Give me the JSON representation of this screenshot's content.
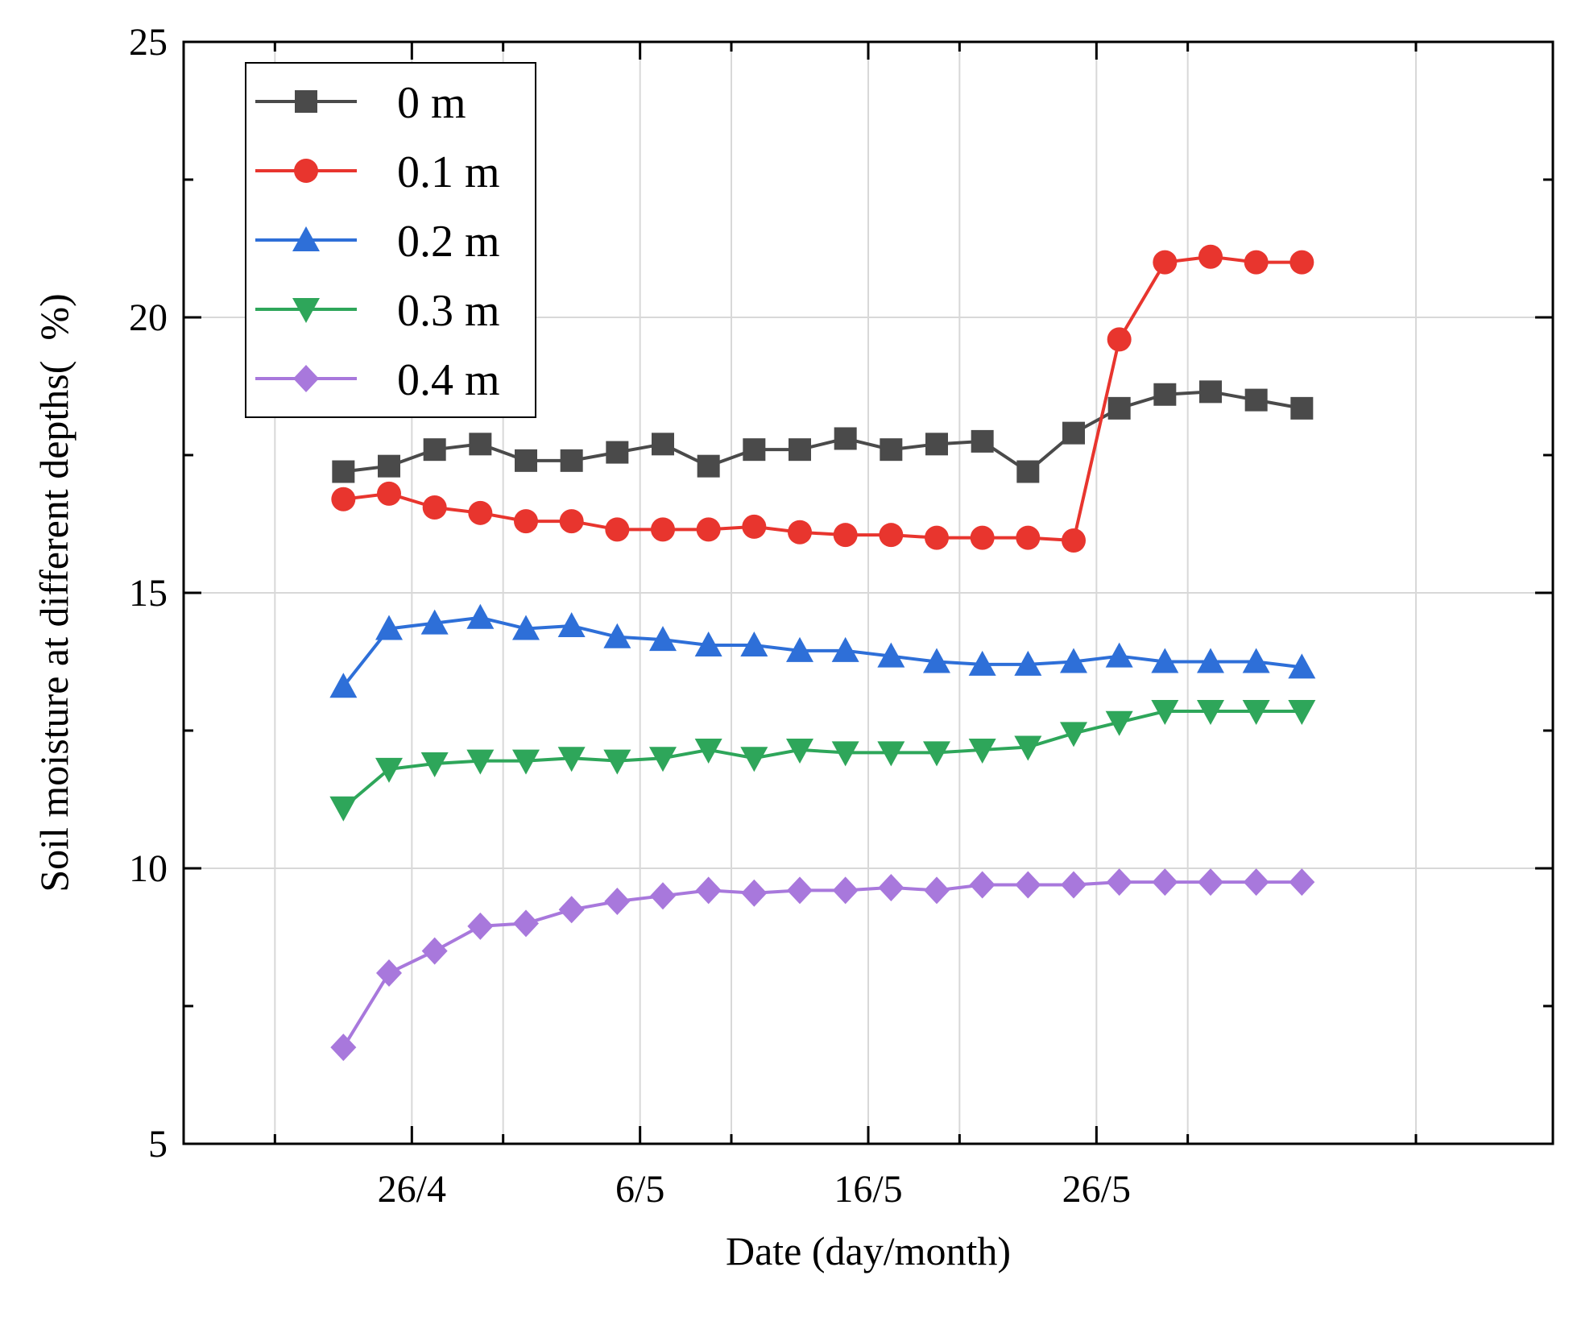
{
  "chart_data": {
    "type": "line",
    "title": "",
    "xlabel": "Date (day/month)",
    "ylabel": "Soil moisture at different depths(  %)",
    "ylim": [
      5,
      25
    ],
    "xlim": [
      -3.5,
      26.5
    ],
    "yticks": [
      5,
      10,
      15,
      20,
      25
    ],
    "xticks": [
      {
        "pos": 1.5,
        "label": "26/4"
      },
      {
        "pos": 6.5,
        "label": "6/5"
      },
      {
        "pos": 11.5,
        "label": "16/5"
      },
      {
        "pos": 16.5,
        "label": "26/5"
      }
    ],
    "xgrid": [
      -1.5,
      3.5,
      8.5,
      13.5,
      18.5,
      23.5
    ],
    "grid": true,
    "legend_position": "top-left",
    "x": [
      0,
      1,
      2,
      3,
      4,
      5,
      6,
      7,
      8,
      9,
      10,
      11,
      12,
      13,
      14,
      15,
      16,
      17,
      18,
      19,
      20,
      21
    ],
    "series": [
      {
        "name": "0 m",
        "color": "#4a4a4a",
        "marker": "square",
        "values": [
          17.2,
          17.3,
          17.6,
          17.7,
          17.4,
          17.4,
          17.55,
          17.7,
          17.3,
          17.6,
          17.6,
          17.8,
          17.6,
          17.7,
          17.75,
          17.2,
          17.9,
          18.35,
          18.6,
          18.65,
          18.5,
          18.35
        ]
      },
      {
        "name": "0.1 m",
        "color": "#e8352e",
        "marker": "circle",
        "values": [
          16.7,
          16.8,
          16.55,
          16.45,
          16.3,
          16.3,
          16.15,
          16.15,
          16.15,
          16.2,
          16.1,
          16.05,
          16.05,
          16.0,
          16.0,
          16.0,
          15.95,
          19.6,
          21.0,
          21.1,
          21.0,
          21.0
        ]
      },
      {
        "name": "0.2 m",
        "color": "#2e6fd8",
        "marker": "triangle-up",
        "values": [
          13.3,
          14.35,
          14.45,
          14.55,
          14.35,
          14.4,
          14.2,
          14.15,
          14.05,
          14.05,
          13.95,
          13.95,
          13.85,
          13.75,
          13.7,
          13.7,
          13.75,
          13.85,
          13.75,
          13.75,
          13.75,
          13.65
        ]
      },
      {
        "name": "0.3 m",
        "color": "#2ea65a",
        "marker": "triangle-down",
        "values": [
          11.1,
          11.8,
          11.9,
          11.95,
          11.95,
          12.0,
          11.95,
          12.0,
          12.15,
          12.0,
          12.15,
          12.1,
          12.1,
          12.1,
          12.15,
          12.2,
          12.45,
          12.65,
          12.85,
          12.85,
          12.85,
          12.85
        ]
      },
      {
        "name": "0.4 m",
        "color": "#a878dc",
        "marker": "diamond",
        "values": [
          6.75,
          8.1,
          8.5,
          8.95,
          9.0,
          9.25,
          9.4,
          9.5,
          9.6,
          9.55,
          9.6,
          9.6,
          9.65,
          9.6,
          9.7,
          9.7,
          9.7,
          9.75,
          9.75,
          9.75,
          9.75,
          9.75
        ]
      }
    ]
  }
}
